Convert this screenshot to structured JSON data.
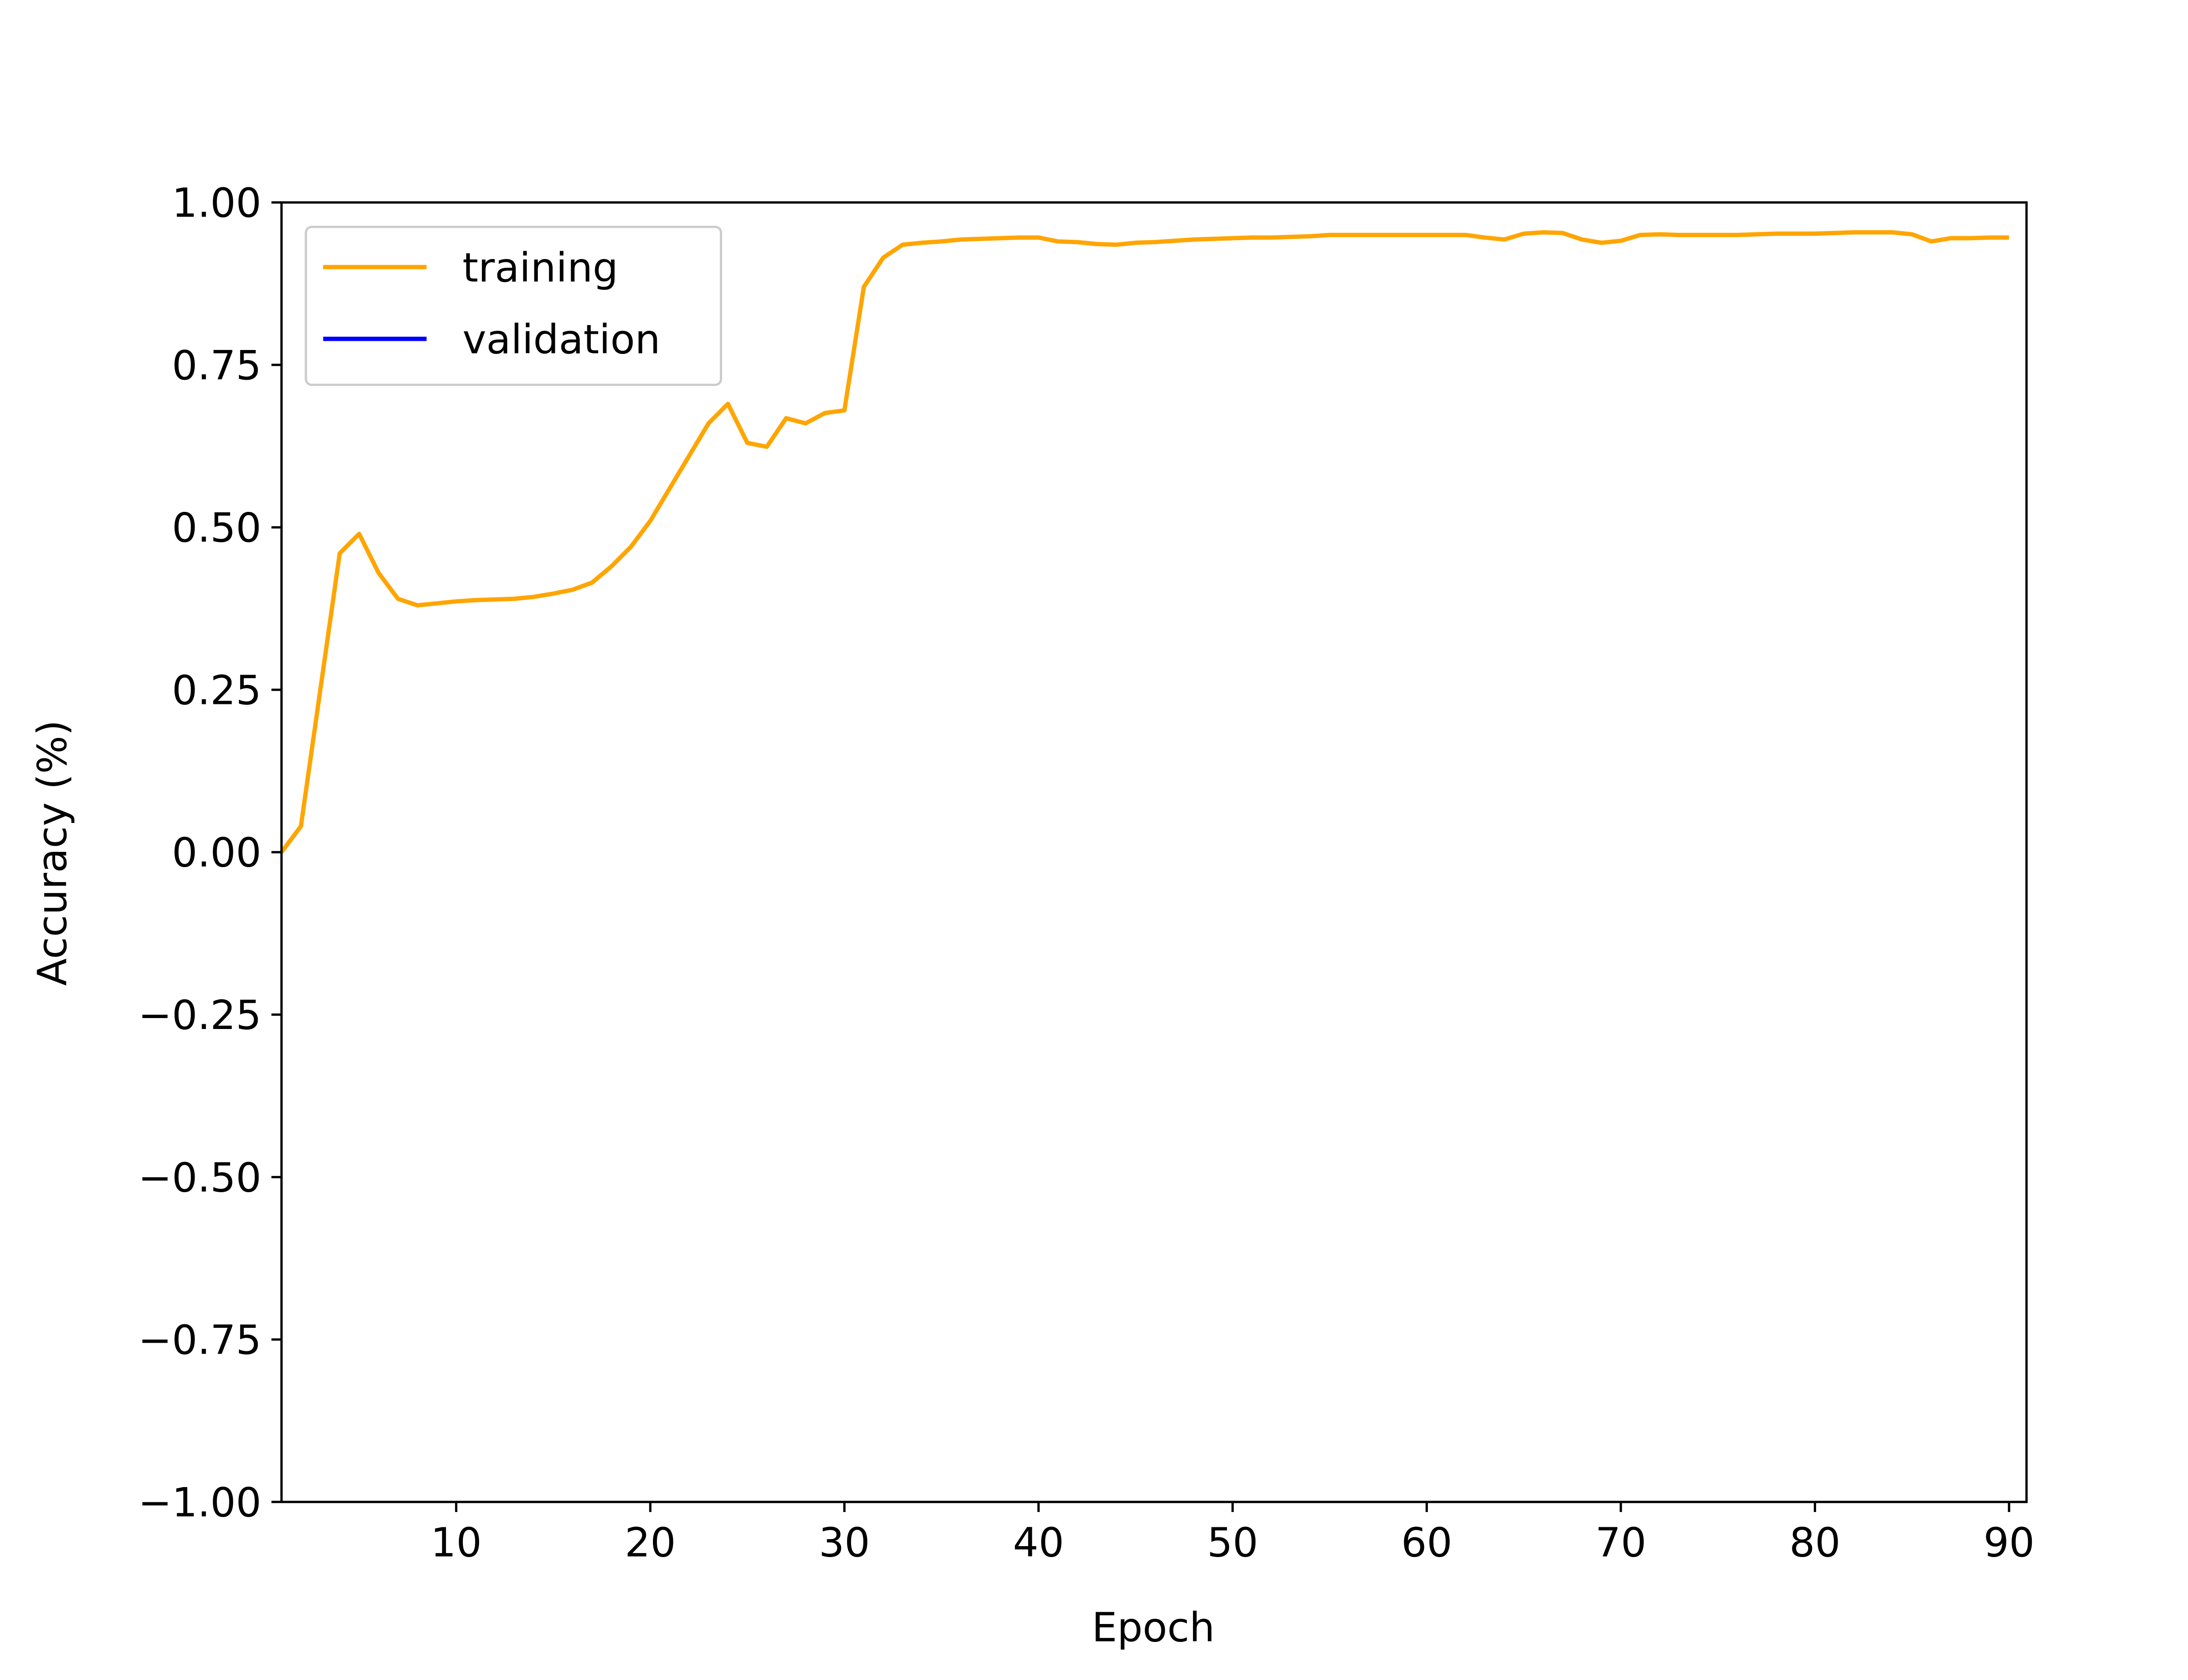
{
  "chart_data": {
    "type": "line",
    "xlabel": "Epoch",
    "ylabel": "Accuracy (%)",
    "x": [
      1,
      2,
      3,
      4,
      5,
      6,
      7,
      8,
      9,
      10,
      11,
      12,
      13,
      14,
      15,
      16,
      17,
      18,
      19,
      20,
      21,
      22,
      23,
      24,
      25,
      26,
      27,
      28,
      29,
      30,
      31,
      32,
      33,
      34,
      35,
      36,
      37,
      38,
      39,
      40,
      41,
      42,
      43,
      44,
      45,
      46,
      47,
      48,
      49,
      50,
      51,
      52,
      53,
      54,
      55,
      56,
      57,
      58,
      59,
      60,
      61,
      62,
      63,
      64,
      65,
      66,
      67,
      68,
      69,
      70,
      71,
      72,
      73,
      74,
      75,
      76,
      77,
      78,
      79,
      80,
      81,
      82,
      83,
      84,
      85,
      86,
      87,
      88,
      89,
      90
    ],
    "series": [
      {
        "name": "training",
        "color": "#ffa500",
        "values": [
          0,
          0.04,
          0.25,
          0.46,
          0.49,
          0.43,
          0.39,
          0.38,
          0.383,
          0.386,
          0.388,
          0.389,
          0.39,
          0.393,
          0.398,
          0.404,
          0.415,
          0.44,
          0.47,
          0.51,
          0.56,
          0.61,
          0.66,
          0.69,
          0.63,
          0.624,
          0.668,
          0.66,
          0.676,
          0.68,
          0.87,
          0.915,
          0.935,
          0.938,
          0.94,
          0.943,
          0.944,
          0.945,
          0.946,
          0.946,
          0.94,
          0.939,
          0.936,
          0.935,
          0.938,
          0.939,
          0.941,
          0.943,
          0.944,
          0.945,
          0.946,
          0.946,
          0.947,
          0.948,
          0.95,
          0.95,
          0.95,
          0.95,
          0.95,
          0.95,
          0.95,
          0.95,
          0.946,
          0.943,
          0.952,
          0.954,
          0.953,
          0.943,
          0.938,
          0.941,
          0.95,
          0.951,
          0.95,
          0.95,
          0.95,
          0.95,
          0.951,
          0.952,
          0.952,
          0.952,
          0.953,
          0.954,
          0.954,
          0.954,
          0.951,
          0.94,
          0.945,
          0.945,
          0.946,
          0.946
        ]
      },
      {
        "name": "validation",
        "color": "#0000ff",
        "values": [
          null,
          null,
          null,
          null,
          null,
          null,
          null,
          null,
          null,
          null,
          null,
          null,
          null,
          null,
          null,
          null,
          null,
          null,
          null,
          null,
          null,
          null,
          null,
          null,
          null,
          null,
          null,
          null,
          null,
          null,
          null,
          null,
          null,
          null,
          null,
          null,
          null,
          null,
          null,
          null,
          null,
          null,
          null,
          null,
          null,
          null,
          null,
          null,
          null,
          null,
          null,
          null,
          null,
          null,
          null,
          null,
          null,
          null,
          null,
          null,
          null,
          null,
          null,
          null,
          null,
          null,
          null,
          null,
          null,
          null,
          null,
          null,
          null,
          null,
          null,
          null,
          null,
          null,
          null,
          null,
          null,
          null,
          null,
          null,
          null,
          null,
          null,
          null,
          null,
          null
        ]
      }
    ],
    "xlim": [
      1,
      90.9
    ],
    "xticks": [
      10,
      20,
      30,
      40,
      50,
      60,
      70,
      80,
      90
    ],
    "ylim": [
      -1,
      1
    ],
    "yticks": [
      {
        "value": -1,
        "label": "−1.00"
      },
      {
        "value": -0.75,
        "label": "−0.75"
      },
      {
        "value": -0.5,
        "label": "−0.50"
      },
      {
        "value": -0.25,
        "label": "−0.25"
      },
      {
        "value": 0,
        "label": "0.00"
      },
      {
        "value": 0.25,
        "label": "0.25"
      },
      {
        "value": 0.5,
        "label": "0.50"
      },
      {
        "value": 0.75,
        "label": "0.75"
      },
      {
        "value": 1,
        "label": "1.00"
      }
    ],
    "legend": "upper left"
  }
}
